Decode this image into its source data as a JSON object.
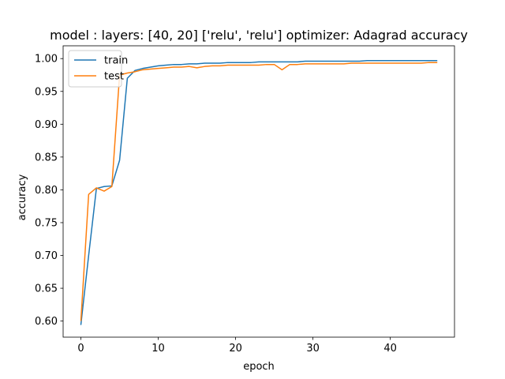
{
  "chart_data": {
    "type": "line",
    "title": "model : layers: [40, 20] ['relu', 'relu'] optimizer: Adagrad accuracy",
    "xlabel": "epoch",
    "ylabel": "accuracy",
    "xlim": [
      -2.3,
      48.3
    ],
    "ylim": [
      0.5755,
      1.0195
    ],
    "xticks": [
      0,
      10,
      20,
      30,
      40
    ],
    "yticks": [
      0.6,
      0.65,
      0.7,
      0.75,
      0.8,
      0.85,
      0.9,
      0.95,
      1.0
    ],
    "legend_position": "upper left",
    "grid": false,
    "x": [
      0,
      1,
      2,
      3,
      4,
      5,
      6,
      7,
      8,
      9,
      10,
      11,
      12,
      13,
      14,
      15,
      16,
      17,
      18,
      19,
      20,
      21,
      22,
      23,
      24,
      25,
      26,
      27,
      28,
      29,
      30,
      31,
      32,
      33,
      34,
      35,
      36,
      37,
      38,
      39,
      40,
      41,
      42,
      43,
      44,
      45,
      46
    ],
    "series": [
      {
        "name": "train",
        "color": "#1f77b4",
        "values": [
          0.595,
          0.7,
          0.802,
          0.805,
          0.806,
          0.845,
          0.97,
          0.982,
          0.985,
          0.987,
          0.989,
          0.99,
          0.991,
          0.991,
          0.992,
          0.992,
          0.993,
          0.993,
          0.993,
          0.994,
          0.994,
          0.994,
          0.994,
          0.995,
          0.995,
          0.995,
          0.995,
          0.995,
          0.995,
          0.996,
          0.996,
          0.996,
          0.996,
          0.996,
          0.996,
          0.996,
          0.996,
          0.997,
          0.997,
          0.997,
          0.997,
          0.997,
          0.997,
          0.997,
          0.997,
          0.997,
          0.997
        ]
      },
      {
        "name": "test",
        "color": "#ff7f0e",
        "values": [
          0.601,
          0.793,
          0.803,
          0.798,
          0.805,
          0.975,
          0.978,
          0.98,
          0.983,
          0.984,
          0.985,
          0.986,
          0.987,
          0.987,
          0.988,
          0.986,
          0.988,
          0.989,
          0.989,
          0.99,
          0.99,
          0.99,
          0.99,
          0.99,
          0.991,
          0.991,
          0.983,
          0.991,
          0.991,
          0.992,
          0.992,
          0.992,
          0.992,
          0.992,
          0.992,
          0.993,
          0.993,
          0.993,
          0.993,
          0.993,
          0.993,
          0.993,
          0.993,
          0.993,
          0.993,
          0.994,
          0.994
        ]
      }
    ]
  }
}
